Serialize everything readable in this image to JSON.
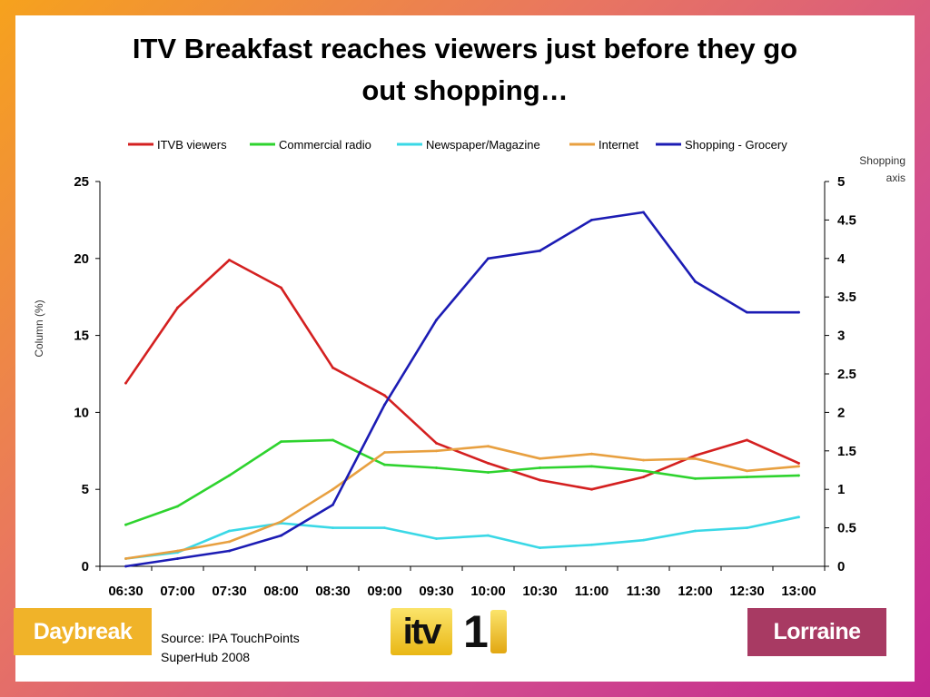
{
  "slide": {
    "title_line1": "ITV Breakfast reaches viewers just before they go",
    "title_line2": "out shopping…",
    "source_line1": "Source: IPA TouchPoints",
    "source_line2": "SuperHub 2008",
    "logos": {
      "left": "Daybreak",
      "center_word": "itv",
      "center_number": "1",
      "right": "Lorraine"
    },
    "colors": {
      "daybreak": "#f0b329",
      "lorraine": "#a83a63",
      "itv_gold": "#f2c531"
    }
  },
  "chart_data": {
    "type": "line",
    "categories": [
      "06:30",
      "07:00",
      "07:30",
      "08:00",
      "08:30",
      "09:00",
      "09:30",
      "10:00",
      "10:30",
      "11:00",
      "11:30",
      "12:00",
      "12:30",
      "13:00"
    ],
    "ylabel": "Column (%)",
    "ylabel_right": "Shopping axis",
    "ylim": [
      0,
      25
    ],
    "yticks": [
      0,
      5,
      10,
      15,
      20,
      25
    ],
    "ylim_right": [
      0,
      5
    ],
    "yticks_right": [
      "0",
      "0.5",
      "1",
      "1.5",
      "2",
      "2.5",
      "3",
      "3.5",
      "4",
      "4.5",
      "5"
    ],
    "legend_position": "top",
    "grid": false,
    "series": [
      {
        "name": "ITVB viewers",
        "axis": "left",
        "color": "#d42020",
        "values": [
          11.9,
          16.8,
          19.9,
          18.1,
          12.9,
          11.1,
          8.0,
          6.7,
          5.6,
          5.0,
          5.8,
          7.2,
          8.2,
          6.7
        ]
      },
      {
        "name": "Commercial radio",
        "axis": "left",
        "color": "#2ed32e",
        "values": [
          2.7,
          3.9,
          5.9,
          8.1,
          8.2,
          6.6,
          6.4,
          6.1,
          6.4,
          6.5,
          6.2,
          5.7,
          5.8,
          5.9
        ]
      },
      {
        "name": "Newspaper/Magazine",
        "axis": "left",
        "color": "#3ad8e6",
        "values": [
          0.5,
          0.9,
          2.3,
          2.8,
          2.5,
          2.5,
          1.8,
          2.0,
          1.2,
          1.4,
          1.7,
          2.3,
          2.5,
          3.2
        ]
      },
      {
        "name": "Internet",
        "axis": "left",
        "color": "#e8a040",
        "values": [
          0.5,
          1.0,
          1.6,
          2.9,
          5.0,
          7.4,
          7.5,
          7.8,
          7.0,
          7.3,
          6.9,
          7.0,
          6.2,
          6.5
        ]
      },
      {
        "name": "Shopping - Grocery",
        "axis": "right",
        "color": "#1c1cb4",
        "values": [
          0.0,
          0.1,
          0.2,
          0.4,
          0.8,
          2.1,
          3.2,
          4.0,
          4.1,
          4.5,
          4.6,
          3.7,
          3.3,
          3.3
        ]
      }
    ]
  }
}
